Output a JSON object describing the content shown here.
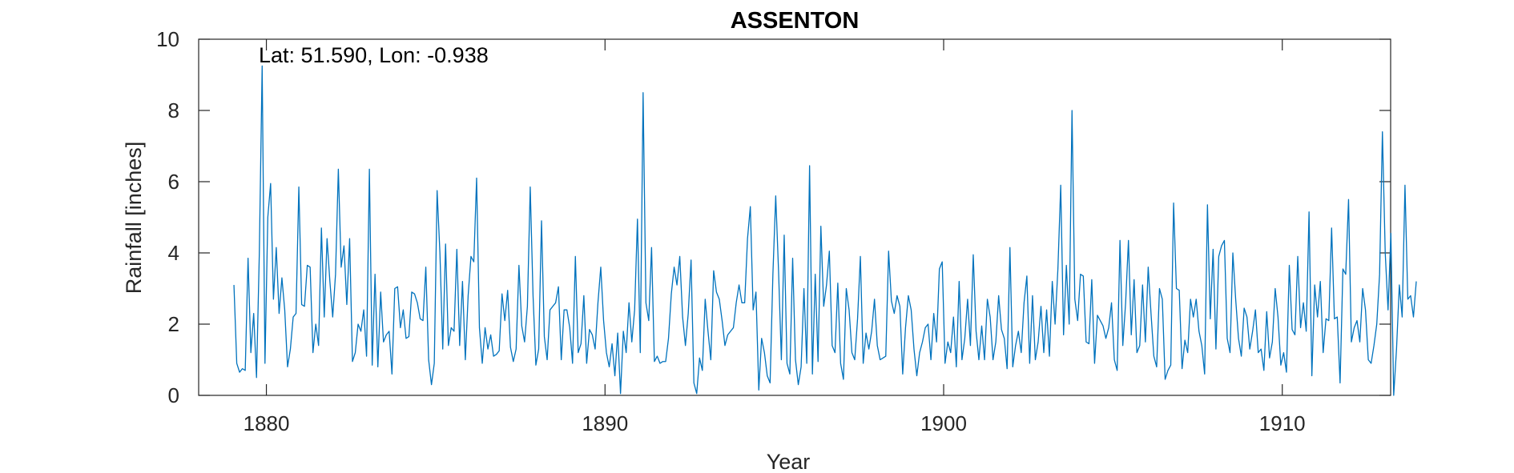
{
  "chart_data": {
    "type": "line",
    "title": "ASSENTON",
    "xlabel": "Year",
    "ylabel": "Rainfall [inches]",
    "annotation": "Lat: 51.590, Lon: -0.938",
    "xlim": [
      1878,
      1913.2
    ],
    "ylim": [
      0,
      10
    ],
    "x_ticks": [
      1880,
      1890,
      1900,
      1910
    ],
    "y_ticks": [
      0,
      2,
      4,
      6,
      8,
      10
    ],
    "grid": false,
    "line_color": "#0072BD",
    "x_start": 1879.0417,
    "x_step": 0.08333,
    "series": [
      {
        "values": [
          3.1,
          0.9,
          0.65,
          0.75,
          0.7,
          3.85,
          1.2,
          2.3,
          0.5,
          4.0,
          9.25,
          0.9,
          5.0,
          5.95,
          2.7,
          4.15,
          2.3,
          3.3,
          2.4,
          0.8,
          1.3,
          2.2,
          2.3,
          5.85,
          2.55,
          2.5,
          3.65,
          3.6,
          1.2,
          2.0,
          1.4,
          4.7,
          2.2,
          4.4,
          3.2,
          2.2,
          3.4,
          6.35,
          3.6,
          4.2,
          2.55,
          4.4,
          0.95,
          1.2,
          2.0,
          1.8,
          2.4,
          1.1,
          6.35,
          0.85,
          3.4,
          0.8,
          2.9,
          1.5,
          1.7,
          1.8,
          0.6,
          3.0,
          3.05,
          1.9,
          2.4,
          1.6,
          1.65,
          2.9,
          2.85,
          2.6,
          2.15,
          2.1,
          3.6,
          1.0,
          0.3,
          0.9,
          5.75,
          4.0,
          1.3,
          4.25,
          1.4,
          1.9,
          1.8,
          4.1,
          1.4,
          3.2,
          1.0,
          2.8,
          3.9,
          3.75,
          6.1,
          1.9,
          0.9,
          1.9,
          1.3,
          1.7,
          1.1,
          1.15,
          1.25,
          2.85,
          2.1,
          2.95,
          1.35,
          0.95,
          1.3,
          3.65,
          1.95,
          1.5,
          2.5,
          5.85,
          2.8,
          0.85,
          1.3,
          4.9,
          1.65,
          1.0,
          2.4,
          2.5,
          2.6,
          3.05,
          1.0,
          2.4,
          2.4,
          1.9,
          0.9,
          3.9,
          1.2,
          1.45,
          2.8,
          0.9,
          1.85,
          1.7,
          1.3,
          2.6,
          3.6,
          2.1,
          1.2,
          0.8,
          1.45,
          0.55,
          1.75,
          0.05,
          1.8,
          1.2,
          2.6,
          1.5,
          2.4,
          4.95,
          1.2,
          8.5,
          2.6,
          2.1,
          4.15,
          0.95,
          1.1,
          0.9,
          0.95,
          0.95,
          1.6,
          2.85,
          3.6,
          3.1,
          3.9,
          2.2,
          1.4,
          2.3,
          3.8,
          0.35,
          0.05,
          1.05,
          0.7,
          2.7,
          1.8,
          1.0,
          3.5,
          2.9,
          2.7,
          2.1,
          1.4,
          1.7,
          1.8,
          1.9,
          2.6,
          3.1,
          2.6,
          2.6,
          4.4,
          5.3,
          2.4,
          2.9,
          0.15,
          1.6,
          1.2,
          0.55,
          0.35,
          3.4,
          5.6,
          3.5,
          1.0,
          4.5,
          0.9,
          0.6,
          3.85,
          1.0,
          0.3,
          0.8,
          3.0,
          0.9,
          6.45,
          0.6,
          3.4,
          0.95,
          4.75,
          2.5,
          3.1,
          4.05,
          1.4,
          1.2,
          3.15,
          0.9,
          0.45,
          3.0,
          2.4,
          1.2,
          1.0,
          2.15,
          3.9,
          0.9,
          1.75,
          1.3,
          1.8,
          2.7,
          1.4,
          1.0,
          1.05,
          1.1,
          4.05,
          2.65,
          2.3,
          2.8,
          2.5,
          0.6,
          1.9,
          2.8,
          2.4,
          1.3,
          0.55,
          1.2,
          1.5,
          1.9,
          2.0,
          1.0,
          2.3,
          1.5,
          3.55,
          3.75,
          0.9,
          1.5,
          1.2,
          2.2,
          0.8,
          3.2,
          1.0,
          1.6,
          2.7,
          1.4,
          3.95,
          1.8,
          1.0,
          1.95,
          1.0,
          2.7,
          2.2,
          1.0,
          1.5,
          2.8,
          1.85,
          1.6,
          0.75,
          4.15,
          0.8,
          1.4,
          1.8,
          1.2,
          2.6,
          3.35,
          0.9,
          2.8,
          1.0,
          1.5,
          2.5,
          1.2,
          2.4,
          1.1,
          3.2,
          2.0,
          3.55,
          5.9,
          1.7,
          3.65,
          2.0,
          8.0,
          2.7,
          2.1,
          3.4,
          3.35,
          1.5,
          1.45,
          3.25,
          0.9,
          2.25,
          2.1,
          1.95,
          1.6,
          1.9,
          2.6,
          1.0,
          0.7,
          4.35,
          1.4,
          2.6,
          4.35,
          1.7,
          3.25,
          1.2,
          1.4,
          3.1,
          1.5,
          3.6,
          2.3,
          1.1,
          0.8,
          3.0,
          2.7,
          0.45,
          0.7,
          0.85,
          5.4,
          3.0,
          2.95,
          0.75,
          1.55,
          1.2,
          2.7,
          2.2,
          2.7,
          1.8,
          1.4,
          0.6,
          5.35,
          2.15,
          4.1,
          1.3,
          3.9,
          4.2,
          4.35,
          1.6,
          1.2,
          4.0,
          2.7,
          1.6,
          1.1,
          2.45,
          2.2,
          1.3,
          1.8,
          2.4,
          1.2,
          1.3,
          0.7,
          2.35,
          1.05,
          1.5,
          3.0,
          2.2,
          0.85,
          1.2,
          0.65,
          3.65,
          1.85,
          1.7,
          3.9,
          1.9,
          2.6,
          1.8,
          5.15,
          0.55,
          3.1,
          2.2,
          3.2,
          1.2,
          2.15,
          2.1,
          4.7,
          2.15,
          2.2,
          0.35,
          3.55,
          3.4,
          5.5,
          1.5,
          1.9,
          2.1,
          1.5,
          3.0,
          2.4,
          1.0,
          0.9,
          1.4,
          2.0,
          3.4,
          7.4,
          4.0,
          2.4,
          4.55,
          0.0,
          1.3,
          3.1,
          2.2,
          5.9,
          2.7,
          2.8,
          2.2,
          3.2
        ]
      }
    ]
  }
}
